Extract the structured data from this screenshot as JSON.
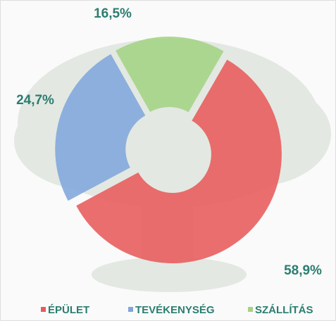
{
  "chart_data": {
    "type": "pie",
    "categories": [
      "ÉPÜLET",
      "TEVÉKENYSÉG",
      "SZÁLLÍTÁS"
    ],
    "values": [
      58.9,
      24.7,
      16.5
    ],
    "value_labels": [
      "58,9%",
      "24,7%",
      "16,5%"
    ],
    "colors": [
      "#e85a5a",
      "#7fa6dc",
      "#a3d383"
    ]
  }
}
